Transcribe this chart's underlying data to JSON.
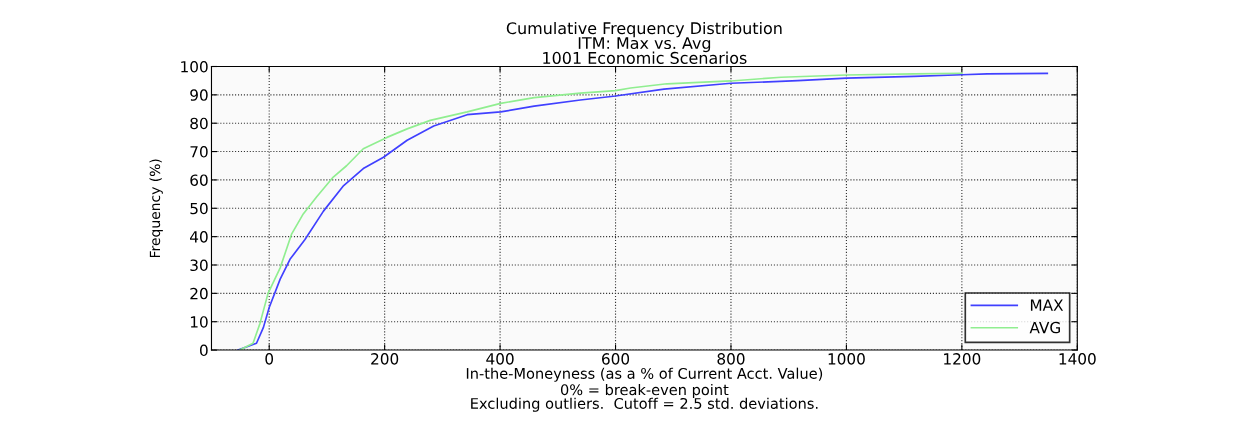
{
  "chart_data": {
    "type": "line",
    "title": "Cumulative Frequency Distribution\nITM: Max vs. Avg\n1001 Economic Scenarios",
    "xlabel": "In-the-Moneyness (as a % of Current Acct. Value)",
    "ylabel": "Frequency (%)",
    "annotations": [
      "0% = break-even point",
      "Excluding outliers.  Cutoff = 2.5 std. deviations."
    ],
    "xlim": [
      -100,
      1400
    ],
    "xticks": [
      0,
      200,
      400,
      600,
      800,
      1000,
      1200,
      1400
    ],
    "ylim": [
      0,
      100
    ],
    "yticks": [
      0,
      10,
      20,
      30,
      40,
      50,
      60,
      70,
      80,
      90,
      100
    ],
    "grid": true,
    "legend": "bottom right",
    "marker": "none",
    "line_style": "solid",
    "series": [
      {
        "name": "MAX",
        "color": "#4040ff",
        "x": [
          -54,
          -22,
          -10,
          0,
          19,
          36,
          62,
          94,
          129,
          163,
          198,
          239,
          285,
          343,
          401,
          459,
          539,
          600,
          684,
          800,
          916,
          1000,
          1117,
          1200,
          1244,
          1348
        ],
        "values": [
          0,
          2.4,
          8,
          15,
          25,
          32,
          39,
          49,
          58,
          64,
          68,
          74,
          79,
          83,
          84,
          86,
          88.2,
          89.6,
          92,
          94.1,
          95,
          95.9,
          96.5,
          97.1,
          97.4,
          97.6
        ]
      },
      {
        "name": "AVG",
        "color": "#90ee90",
        "x": [
          -51,
          -28,
          -16,
          -2,
          19,
          39,
          59,
          82,
          111,
          134,
          163,
          204,
          239,
          279,
          343,
          401,
          459,
          539,
          600,
          626,
          689,
          800,
          887,
          1000,
          1117,
          1200
        ],
        "values": [
          0,
          2.4,
          9.4,
          20,
          29,
          41,
          48,
          54,
          61,
          65,
          71,
          75,
          78,
          81,
          84,
          87,
          89,
          90.6,
          91.5,
          92.4,
          93.9,
          94.9,
          96.2,
          97,
          97.4,
          97.6
        ]
      }
    ]
  }
}
